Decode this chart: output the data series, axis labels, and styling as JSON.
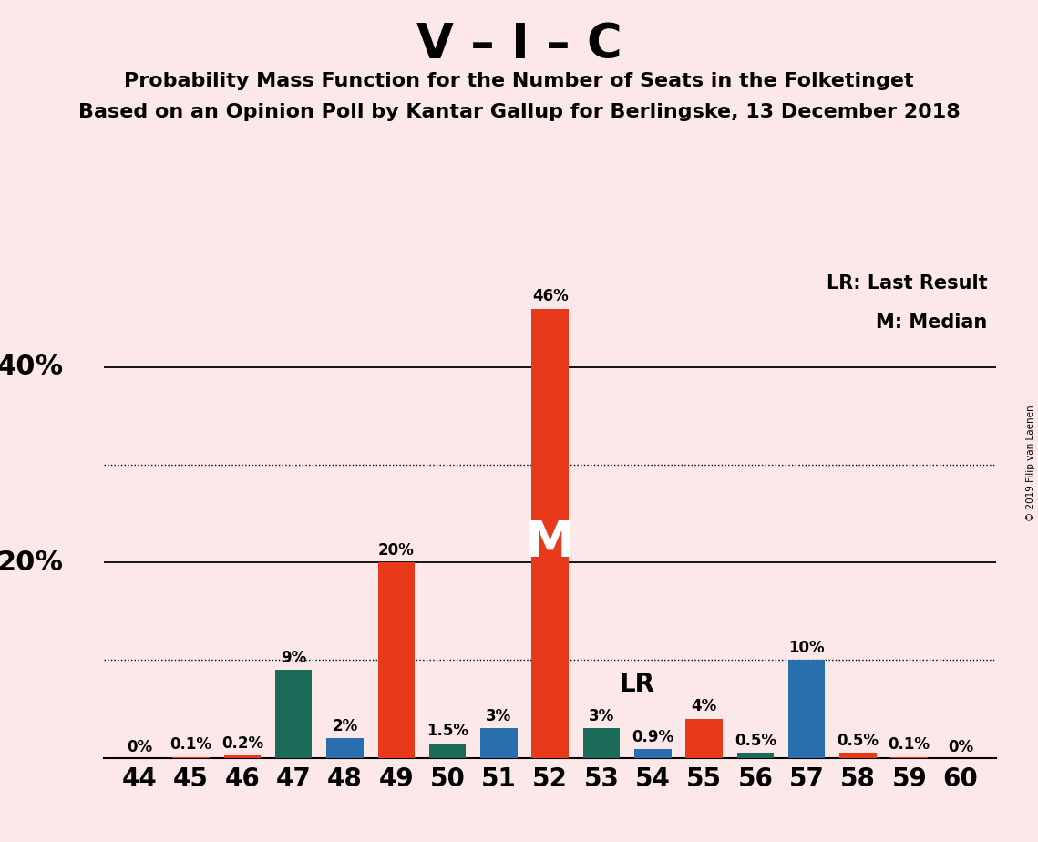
{
  "title_main": "V – I – C",
  "subtitle1": "Probability Mass Function for the Number of Seats in the Folketinget",
  "subtitle2": "Based on an Opinion Poll by Kantar Gallup for Berlingske, 13 December 2018",
  "watermark": "© 2019 Filip van Laenen",
  "seats": [
    44,
    45,
    46,
    47,
    48,
    49,
    50,
    51,
    52,
    53,
    54,
    55,
    56,
    57,
    58,
    59,
    60
  ],
  "values": [
    0.0,
    0.1,
    0.2,
    9.0,
    2.0,
    20.0,
    1.5,
    3.0,
    46.0,
    3.0,
    0.9,
    4.0,
    0.5,
    10.0,
    0.5,
    0.1,
    0.0
  ],
  "labels": [
    "0%",
    "0.1%",
    "0.2%",
    "9%",
    "2%",
    "20%",
    "1.5%",
    "3%",
    "46%",
    "3%",
    "0.9%",
    "4%",
    "0.5%",
    "10%",
    "0.5%",
    "0.1%",
    "0%"
  ],
  "colors": [
    "#e8391a",
    "#e8391a",
    "#e8391a",
    "#1a6b5a",
    "#2a6fad",
    "#e8391a",
    "#1a6b5a",
    "#2a6fad",
    "#e8391a",
    "#1a6b5a",
    "#2a6fad",
    "#e8391a",
    "#1a6b5a",
    "#2a6fad",
    "#e8391a",
    "#e8391a",
    "#e8391a"
  ],
  "median_seat": 52,
  "lr_seat": 53,
  "background_color": "#fce8e8",
  "ylim": [
    0,
    50
  ],
  "solid_yticks": [
    20,
    40
  ],
  "dotted_yticks": [
    10,
    30
  ],
  "ylabel_values": [
    20,
    40
  ],
  "ylabel_labels": [
    "20%",
    "40%"
  ],
  "legend_lr": "LR: Last Result",
  "legend_m": "M: Median"
}
